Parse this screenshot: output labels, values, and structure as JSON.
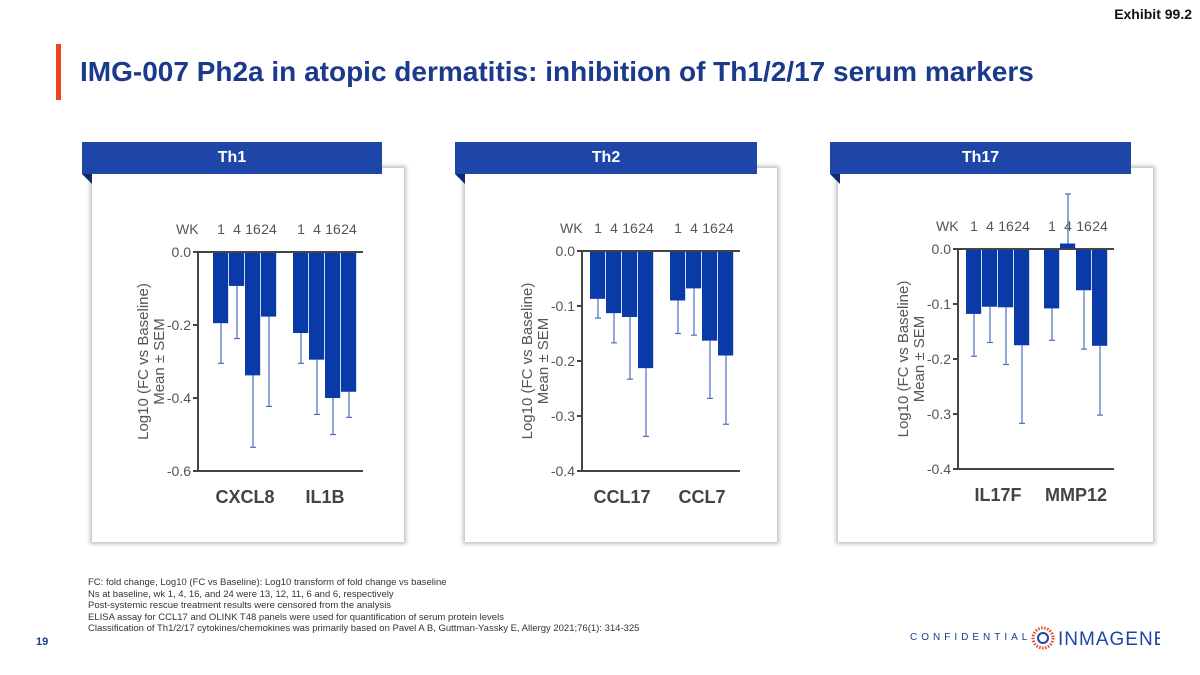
{
  "exhibit": "Exhibit 99.2",
  "title": "IMG-007 Ph2a in atopic dermatitis: inhibition of Th1/2/17 serum markers",
  "page_number": "19",
  "confidential": "CONFIDENTIAL",
  "logo_text": "INMAGENE",
  "footnotes": [
    "FC: fold change, Log10 (FC vs Baseline): Log10 transform of fold change vs baseline",
    "Ns at baseline, wk 1, 4, 16, and 24 were 13, 12, 11, 6 and 6, respectively",
    "Post-systemic rescue treatment results were censored from the analysis",
    "ELISA assay for CCL17 and OLINK T48 panels were used for quantification of serum protein levels",
    "Classification of Th1/2/17 cytokines/chemokines was primarily based on Pavel A B, Guttman-Yassky E, Allergy 2021;76(1): 314-325"
  ],
  "colors": {
    "bar": "#0a3aa8",
    "error": "#4a6fc0",
    "header": "#1d46a8",
    "accent": "#e8461f"
  },
  "chart_data": [
    {
      "type": "bar",
      "panel": "Th1",
      "ylabel": "Log10 (FC vs Baseline)",
      "ylabel2": "Mean ± SEM",
      "week_label": "WK",
      "weeks": [
        "1",
        "4",
        "16",
        "24"
      ],
      "ylim": [
        -0.6,
        0.0
      ],
      "yticks": [
        "0.0",
        "-0.2",
        "-0.4",
        "-0.6"
      ],
      "ytick_values": [
        0,
        -0.2,
        -0.4,
        -0.6
      ],
      "series": [
        {
          "name": "CXCL8",
          "values": [
            -0.195,
            -0.093,
            -0.338,
            -0.177
          ],
          "sem_ends": [
            -0.305,
            -0.237,
            -0.535,
            -0.423
          ]
        },
        {
          "name": "IL1B",
          "values": [
            -0.222,
            -0.295,
            -0.4,
            -0.383
          ],
          "sem_ends": [
            -0.305,
            -0.445,
            -0.5,
            -0.453
          ]
        }
      ]
    },
    {
      "type": "bar",
      "panel": "Th2",
      "ylabel": "Log10 (FC vs Baseline)",
      "ylabel2": "Mean ± SEM",
      "week_label": "WK",
      "weeks": [
        "1",
        "4",
        "16",
        "24"
      ],
      "ylim": [
        -0.4,
        0.0
      ],
      "yticks": [
        "0.0",
        "-0.1",
        "-0.2",
        "-0.3",
        "-0.4"
      ],
      "ytick_values": [
        0,
        -0.1,
        -0.2,
        -0.3,
        -0.4
      ],
      "series": [
        {
          "name": "CCL17",
          "values": [
            -0.087,
            -0.113,
            -0.12,
            -0.213
          ],
          "sem_ends": [
            -0.122,
            -0.167,
            -0.233,
            -0.337
          ]
        },
        {
          "name": "CCL7",
          "values": [
            -0.09,
            -0.068,
            -0.163,
            -0.19
          ],
          "sem_ends": [
            -0.15,
            -0.153,
            -0.268,
            -0.315
          ]
        }
      ]
    },
    {
      "type": "bar",
      "panel": "Th17",
      "ylabel": "Log10 (FC vs Baseline)",
      "ylabel2": "Mean ± SEM",
      "week_label": "WK",
      "weeks": [
        "1",
        "4",
        "16",
        "24"
      ],
      "ylim": [
        -0.4,
        0.0
      ],
      "yticks": [
        "0.0",
        "-0.1",
        "-0.2",
        "-0.3",
        "-0.4"
      ],
      "ytick_values": [
        0,
        -0.1,
        -0.2,
        -0.3,
        -0.4
      ],
      "series": [
        {
          "name": "IL17F",
          "values": [
            -0.118,
            -0.105,
            -0.106,
            -0.175
          ],
          "sem_ends": [
            -0.195,
            -0.17,
            -0.21,
            -0.317
          ]
        },
        {
          "name": "MMP12",
          "values": [
            -0.108,
            0.01,
            -0.075,
            -0.176
          ],
          "sem_ends": [
            -0.166,
            0.1,
            -0.182,
            -0.302
          ]
        }
      ]
    }
  ]
}
